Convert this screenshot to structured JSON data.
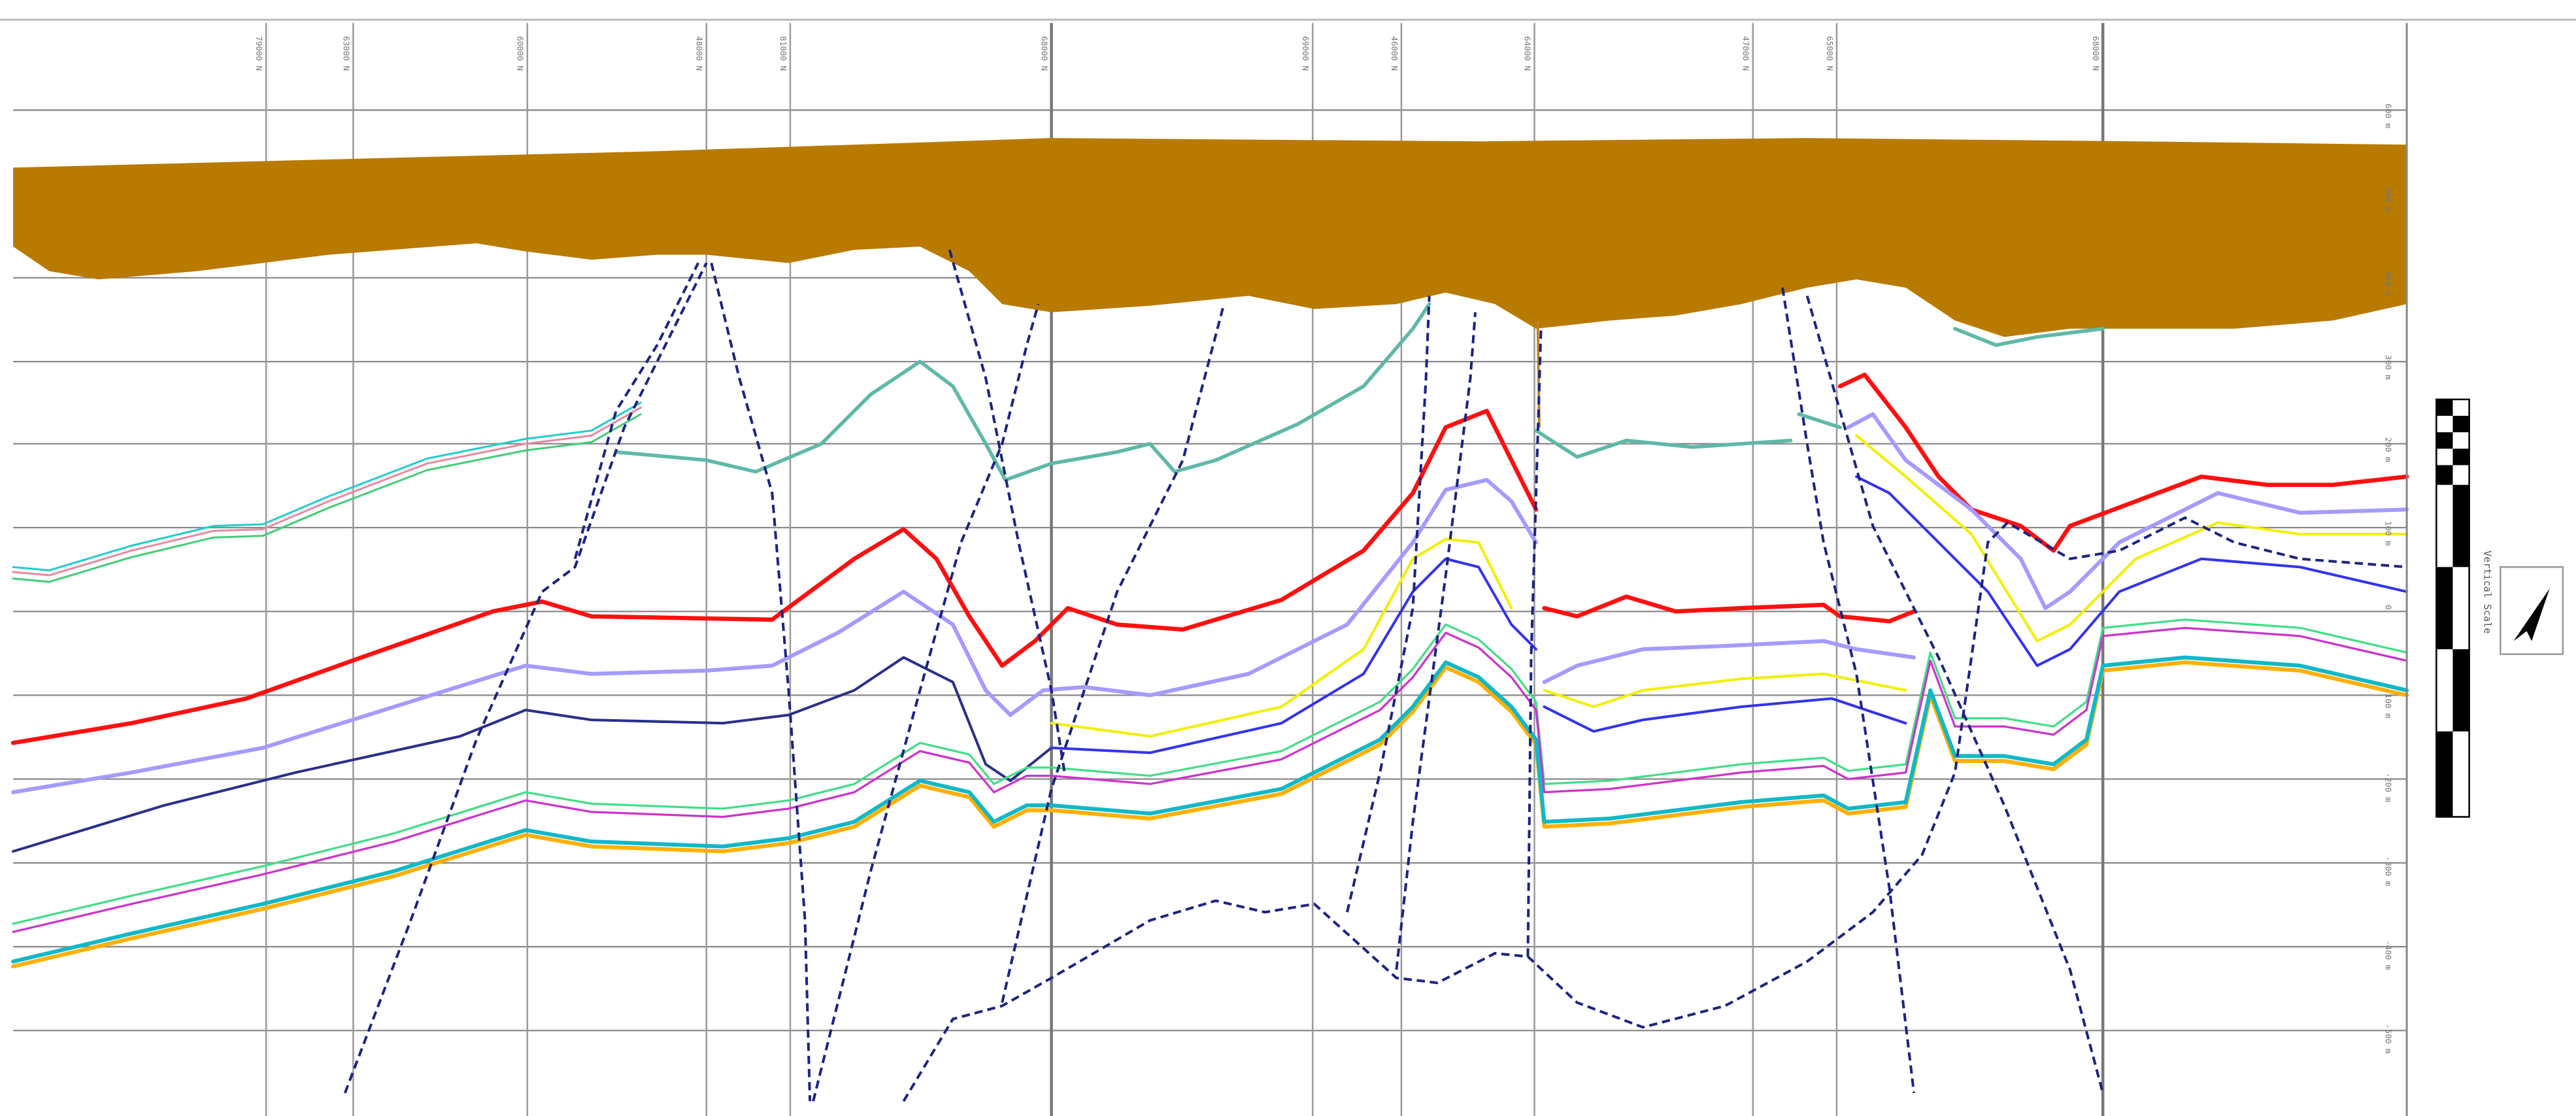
{
  "section_labels": [
    "79000 N",
    "63000 N",
    "60000 N",
    "48000 N",
    "81000 N",
    "68000 N",
    "69000 N",
    "46000 N",
    "64000 N",
    "47000 N",
    "65000 N",
    "68000 N"
  ],
  "depth_labels": [
    "600 m",
    "500 m",
    "400 m",
    "300 m",
    "200 m",
    "100 m",
    "0",
    "-100 m",
    "-200 m",
    "-300 m",
    "-400 m",
    "-500 m"
  ],
  "scale": {
    "title": "Vertical Scale"
  }
}
